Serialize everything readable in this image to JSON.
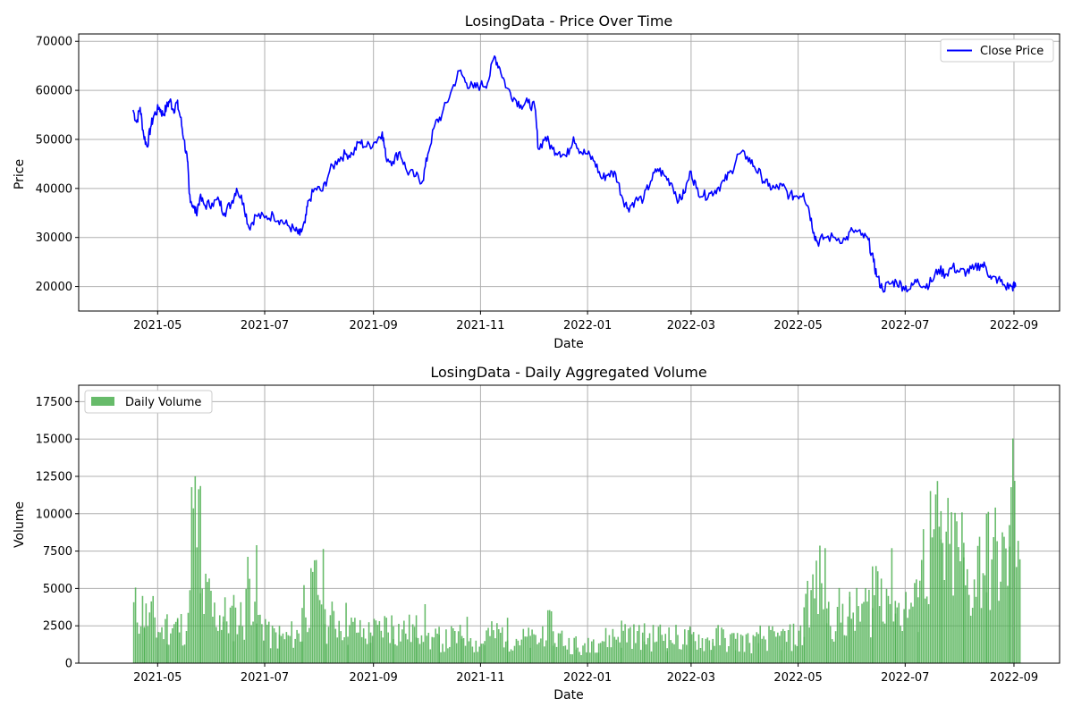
{
  "chart_data": [
    {
      "type": "line",
      "title": "LosingData - Price Over Time",
      "xlabel": "Date",
      "ylabel": "Price",
      "xlim": [
        "2021-03-17",
        "2022-09-27"
      ],
      "ylim": [
        15000,
        71500
      ],
      "yticks": [
        20000,
        30000,
        40000,
        50000,
        60000,
        70000
      ],
      "xtick_dates": [
        "2021-05-01",
        "2021-07-01",
        "2021-09-01",
        "2021-11-01",
        "2022-01-01",
        "2022-03-01",
        "2022-05-01",
        "2022-07-01",
        "2022-09-01"
      ],
      "xtick_labels": [
        "2021-05",
        "2021-07",
        "2021-09",
        "2021-11",
        "2022-01",
        "2022-03",
        "2022-05",
        "2022-07",
        "2022-09"
      ],
      "grid": true,
      "legend_position": "top-right",
      "series": [
        {
          "name": "Close Price",
          "color": "#0000ff",
          "points": [
            [
              "2021-04-17",
              56000
            ],
            [
              "2021-04-19",
              53500
            ],
            [
              "2021-04-21",
              56500
            ],
            [
              "2021-04-23",
              51000
            ],
            [
              "2021-04-25",
              48500
            ],
            [
              "2021-04-27",
              52500
            ],
            [
              "2021-04-29",
              55000
            ],
            [
              "2021-05-02",
              56500
            ],
            [
              "2021-05-04",
              55000
            ],
            [
              "2021-05-06",
              56500
            ],
            [
              "2021-05-08",
              58000
            ],
            [
              "2021-05-10",
              56000
            ],
            [
              "2021-05-12",
              57500
            ],
            [
              "2021-05-14",
              54500
            ],
            [
              "2021-05-16",
              50000
            ],
            [
              "2021-05-18",
              45500
            ],
            [
              "2021-05-19",
              39000
            ],
            [
              "2021-05-21",
              36500
            ],
            [
              "2021-05-23",
              35000
            ],
            [
              "2021-05-25",
              38000
            ],
            [
              "2021-05-28",
              36500
            ],
            [
              "2021-06-01",
              37000
            ],
            [
              "2021-06-05",
              37500
            ],
            [
              "2021-06-08",
              35000
            ],
            [
              "2021-06-12",
              37000
            ],
            [
              "2021-06-15",
              40000
            ],
            [
              "2021-06-19",
              37000
            ],
            [
              "2021-06-22",
              32000
            ],
            [
              "2021-06-26",
              34500
            ],
            [
              "2021-07-01",
              34000
            ],
            [
              "2021-07-06",
              34500
            ],
            [
              "2021-07-10",
              33500
            ],
            [
              "2021-07-14",
              32500
            ],
            [
              "2021-07-18",
              31500
            ],
            [
              "2021-07-21",
              30500
            ],
            [
              "2021-07-24",
              33000
            ],
            [
              "2021-07-26",
              37500
            ],
            [
              "2021-07-30",
              40000
            ],
            [
              "2021-08-03",
              39500
            ],
            [
              "2021-08-07",
              43500
            ],
            [
              "2021-08-12",
              46000
            ],
            [
              "2021-08-16",
              47000
            ],
            [
              "2021-08-20",
              47000
            ],
            [
              "2021-08-24",
              49500
            ],
            [
              "2021-08-28",
              48500
            ],
            [
              "2021-09-02",
              49500
            ],
            [
              "2021-09-06",
              51500
            ],
            [
              "2021-09-08",
              46500
            ],
            [
              "2021-09-12",
              45500
            ],
            [
              "2021-09-16",
              47500
            ],
            [
              "2021-09-20",
              43500
            ],
            [
              "2021-09-25",
              42500
            ],
            [
              "2021-09-29",
              41500
            ],
            [
              "2021-10-02",
              47000
            ],
            [
              "2021-10-06",
              53000
            ],
            [
              "2021-10-10",
              55000
            ],
            [
              "2021-10-15",
              59500
            ],
            [
              "2021-10-20",
              64000
            ],
            [
              "2021-10-24",
              61500
            ],
            [
              "2021-10-28",
              60500
            ],
            [
              "2021-11-01",
              61000
            ],
            [
              "2021-11-05",
              61500
            ],
            [
              "2021-11-09",
              67000
            ],
            [
              "2021-11-12",
              64500
            ],
            [
              "2021-11-16",
              60500
            ],
            [
              "2021-11-20",
              58500
            ],
            [
              "2021-11-24",
              57000
            ],
            [
              "2021-11-28",
              57500
            ],
            [
              "2021-12-02",
              56500
            ],
            [
              "2021-12-04",
              48000
            ],
            [
              "2021-12-08",
              50500
            ],
            [
              "2021-12-12",
              48000
            ],
            [
              "2021-12-16",
              47500
            ],
            [
              "2021-12-20",
              46500
            ],
            [
              "2021-12-24",
              50500
            ],
            [
              "2021-12-28",
              47500
            ],
            [
              "2022-01-01",
              47000
            ],
            [
              "2022-01-05",
              45500
            ],
            [
              "2022-01-09",
              42000
            ],
            [
              "2022-01-13",
              43000
            ],
            [
              "2022-01-17",
              43000
            ],
            [
              "2022-01-21",
              38000
            ],
            [
              "2022-01-24",
              36000
            ],
            [
              "2022-01-28",
              37500
            ],
            [
              "2022-02-02",
              38000
            ],
            [
              "2022-02-06",
              41500
            ],
            [
              "2022-02-10",
              44000
            ],
            [
              "2022-02-14",
              42500
            ],
            [
              "2022-02-18",
              41000
            ],
            [
              "2022-02-22",
              37500
            ],
            [
              "2022-02-25",
              39000
            ],
            [
              "2022-03-01",
              43500
            ],
            [
              "2022-03-04",
              40000
            ],
            [
              "2022-03-08",
              38500
            ],
            [
              "2022-03-12",
              39000
            ],
            [
              "2022-03-16",
              40000
            ],
            [
              "2022-03-20",
              41500
            ],
            [
              "2022-03-24",
              43500
            ],
            [
              "2022-03-28",
              47000
            ],
            [
              "2022-04-02",
              46500
            ],
            [
              "2022-04-06",
              44500
            ],
            [
              "2022-04-10",
              42500
            ],
            [
              "2022-04-14",
              40500
            ],
            [
              "2022-04-18",
              40000
            ],
            [
              "2022-04-22",
              40500
            ],
            [
              "2022-04-26",
              38500
            ],
            [
              "2022-04-30",
              38500
            ],
            [
              "2022-05-04",
              39000
            ],
            [
              "2022-05-07",
              36000
            ],
            [
              "2022-05-10",
              31000
            ],
            [
              "2022-05-12",
              29000
            ],
            [
              "2022-05-16",
              30000
            ],
            [
              "2022-05-22",
              30000
            ],
            [
              "2022-05-28",
              29500
            ],
            [
              "2022-06-01",
              31500
            ],
            [
              "2022-06-06",
              30500
            ],
            [
              "2022-06-10",
              29500
            ],
            [
              "2022-06-13",
              25000
            ],
            [
              "2022-06-15",
              22000
            ],
            [
              "2022-06-18",
              19500
            ],
            [
              "2022-06-22",
              20500
            ],
            [
              "2022-06-26",
              21000
            ],
            [
              "2022-06-30",
              20000
            ],
            [
              "2022-07-04",
              19500
            ],
            [
              "2022-07-08",
              21500
            ],
            [
              "2022-07-12",
              20000
            ],
            [
              "2022-07-16",
              21000
            ],
            [
              "2022-07-20",
              23500
            ],
            [
              "2022-07-24",
              22500
            ],
            [
              "2022-07-28",
              24000
            ],
            [
              "2022-08-01",
              23000
            ],
            [
              "2022-08-05",
              23000
            ],
            [
              "2022-08-09",
              23500
            ],
            [
              "2022-08-13",
              24500
            ],
            [
              "2022-08-16",
              24000
            ],
            [
              "2022-08-19",
              21500
            ],
            [
              "2022-08-23",
              21500
            ],
            [
              "2022-08-27",
              20000
            ],
            [
              "2022-08-31",
              20000
            ],
            [
              "2022-09-02",
              20000
            ]
          ]
        }
      ]
    },
    {
      "type": "bar",
      "title": "LosingData - Daily Aggregated Volume",
      "xlabel": "Date",
      "ylabel": "Volume",
      "xlim": [
        "2021-03-17",
        "2022-09-27"
      ],
      "ylim": [
        0,
        18600
      ],
      "yticks": [
        0,
        2500,
        5000,
        7500,
        10000,
        12500,
        15000,
        17500
      ],
      "xtick_dates": [
        "2021-05-01",
        "2021-07-01",
        "2021-09-01",
        "2021-11-01",
        "2022-01-01",
        "2022-03-01",
        "2022-05-01",
        "2022-07-01",
        "2022-09-01"
      ],
      "xtick_labels": [
        "2021-05",
        "2021-07",
        "2021-09",
        "2021-11",
        "2022-01",
        "2022-03",
        "2022-05",
        "2022-07",
        "2022-09"
      ],
      "grid": true,
      "legend_position": "top-left",
      "series": [
        {
          "name": "Daily Volume",
          "color": "#4caf50",
          "x": [
            "2021-04-17",
            "2021-04-23",
            "2021-04-30",
            "2021-05-06",
            "2021-05-12",
            "2021-05-19",
            "2021-05-25",
            "2021-06-01",
            "2021-06-07",
            "2021-06-13",
            "2021-06-20",
            "2021-06-26",
            "2021-07-03",
            "2021-07-09",
            "2021-07-16",
            "2021-07-22",
            "2021-07-29",
            "2021-08-04",
            "2021-08-11",
            "2021-08-17",
            "2021-08-24",
            "2021-08-30",
            "2021-09-06",
            "2021-09-12",
            "2021-09-19",
            "2021-09-25",
            "2021-10-02",
            "2021-10-08",
            "2021-10-15",
            "2021-10-21",
            "2021-10-28",
            "2021-11-03",
            "2021-11-10",
            "2021-11-16",
            "2021-11-23",
            "2021-11-29",
            "2021-12-06",
            "2021-12-12",
            "2021-12-19",
            "2021-12-25",
            "2022-01-01",
            "2022-01-07",
            "2022-01-14",
            "2022-01-20",
            "2022-01-27",
            "2022-02-02",
            "2022-02-09",
            "2022-02-15",
            "2022-02-22",
            "2022-02-28",
            "2022-03-07",
            "2022-03-13",
            "2022-03-20",
            "2022-03-26",
            "2022-04-02",
            "2022-04-08",
            "2022-04-15",
            "2022-04-21",
            "2022-04-28",
            "2022-05-04",
            "2022-05-11",
            "2022-05-17",
            "2022-05-24",
            "2022-05-30",
            "2022-06-06",
            "2022-06-12",
            "2022-06-19",
            "2022-06-25",
            "2022-07-02",
            "2022-07-08",
            "2022-07-15",
            "2022-07-21",
            "2022-07-28",
            "2022-08-03",
            "2022-08-10",
            "2022-08-16",
            "2022-08-23",
            "2022-08-29"
          ],
          "values": [
            3500,
            3000,
            2200,
            2500,
            2400,
            9000,
            4200,
            3200,
            3100,
            3000,
            5200,
            2700,
            1800,
            1700,
            1900,
            4200,
            5000,
            2800,
            2800,
            2300,
            2000,
            2100,
            2500,
            2200,
            2200,
            2600,
            1600,
            1500,
            1700,
            2100,
            1300,
            1900,
            2000,
            1700,
            1600,
            1500,
            2300,
            1700,
            1300,
            900,
            1500,
            1600,
            1800,
            2100,
            1800,
            1700,
            1900,
            1700,
            1600,
            1700,
            1500,
            1700,
            1500,
            1500,
            1400,
            1700,
            1600,
            1700,
            1800,
            4500,
            5300,
            3100,
            3300,
            3300,
            3700,
            5500,
            5000,
            3600,
            3800,
            6800,
            8200,
            7300,
            7400,
            5300,
            6600,
            7000,
            6700,
            10500
          ],
          "bar_span_days": 7
        }
      ]
    }
  ]
}
